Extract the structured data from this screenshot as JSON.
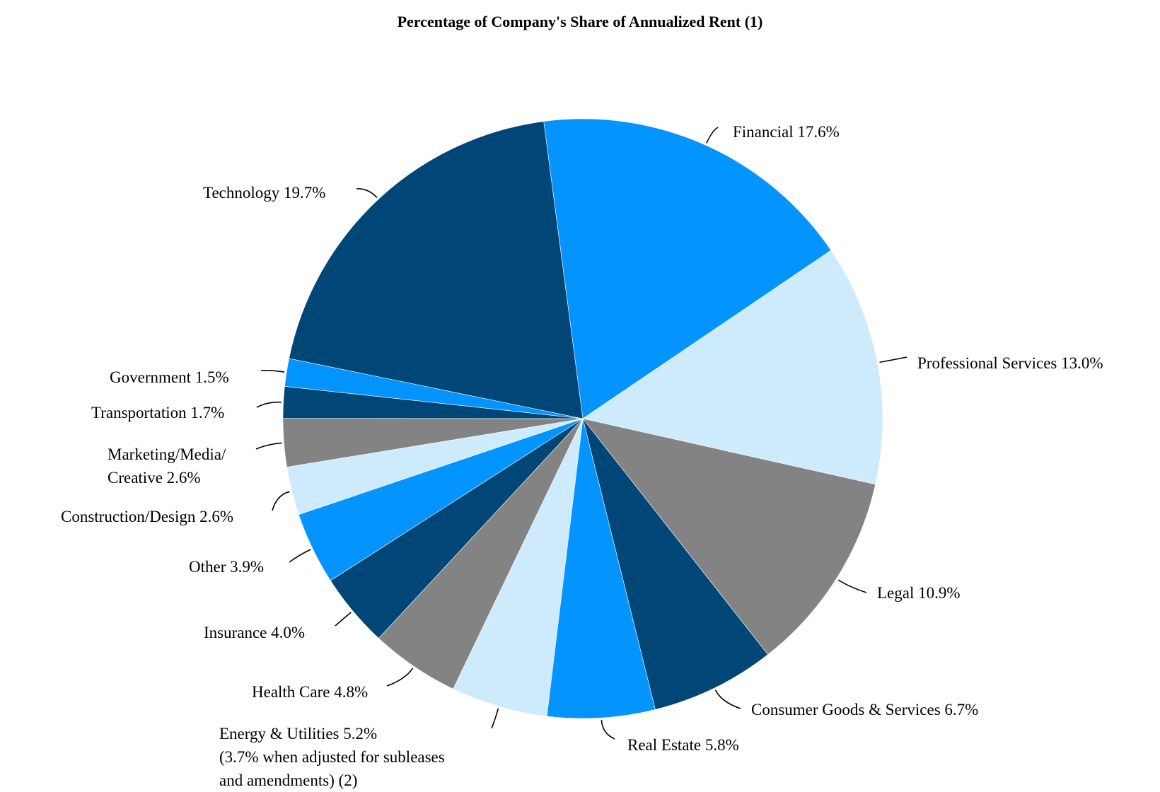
{
  "chart_data": {
    "type": "pie",
    "title": "Percentage of Company's Share of Annualized Rent (1)",
    "start_angle_deg": -7.5,
    "direction": "clockwise",
    "slices": [
      {
        "label": "Financial 17.6%",
        "value": 17.6,
        "color": "#0394FF"
      },
      {
        "label": "Professional Services 13.0%",
        "value": 13.0,
        "color": "#CDEBFC"
      },
      {
        "label": "Legal 10.9%",
        "value": 10.9,
        "color": "#838383"
      },
      {
        "label": "Consumer Goods & Services 6.7%",
        "value": 6.7,
        "color": "#004778"
      },
      {
        "label": "Real Estate 5.8%",
        "value": 5.8,
        "color": "#0394FF"
      },
      {
        "label": "Energy & Utilities 5.2%\n(3.7% when adjusted for subleases\nand amendments) (2)",
        "value": 5.2,
        "color": "#CDEBFC"
      },
      {
        "label": "Health Care 4.8%",
        "value": 4.8,
        "color": "#838383"
      },
      {
        "label": "Insurance 4.0%",
        "value": 4.0,
        "color": "#004778"
      },
      {
        "label": "Other 3.9%",
        "value": 3.9,
        "color": "#0394FF"
      },
      {
        "label": "Construction/Design 2.6%",
        "value": 2.6,
        "color": "#CDEBFC"
      },
      {
        "label": "Marketing/Media/\nCreative 2.6%",
        "value": 2.6,
        "color": "#838383"
      },
      {
        "label": "Transportation 1.7%",
        "value": 1.7,
        "color": "#004778"
      },
      {
        "label": "Government 1.5%",
        "value": 1.5,
        "color": "#0394FF"
      },
      {
        "label": "Technology 19.7%",
        "value": 19.7,
        "color": "#004778"
      }
    ]
  }
}
